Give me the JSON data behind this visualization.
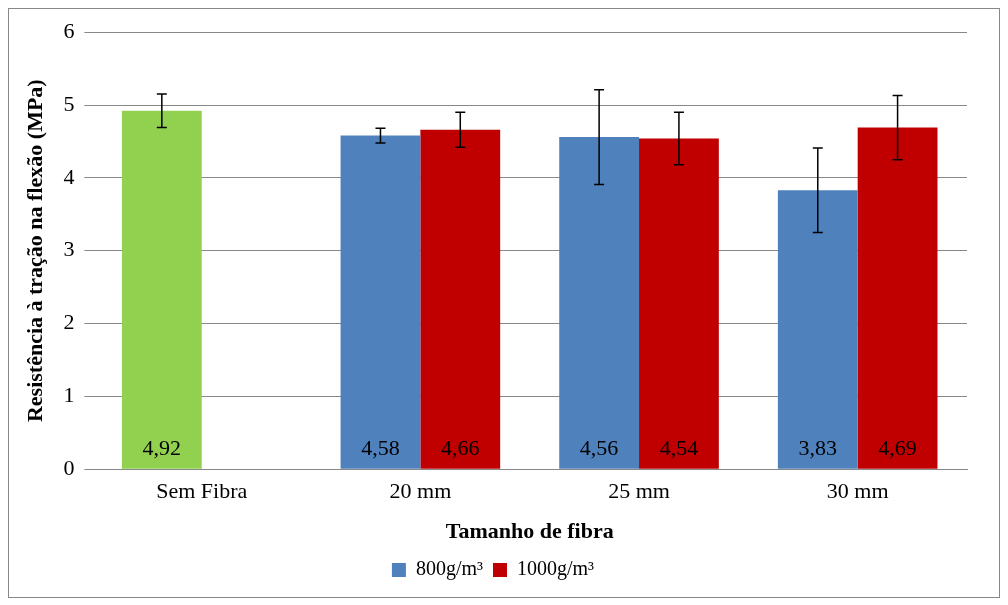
{
  "chart_data": {
    "type": "bar",
    "xlabel": "Tamanho de fibra",
    "ylabel": "Resistência à tração na flexão (MPa)",
    "categories": [
      "Sem Fibra",
      "20 mm",
      "25 mm",
      "30 mm"
    ],
    "series": [
      {
        "name": "800g/m³",
        "color": "#4f81bd",
        "colors": [
          "#92d050",
          "#4f81bd",
          "#4f81bd",
          "#4f81bd"
        ],
        "values": [
          4.92,
          4.58,
          4.56,
          3.83
        ],
        "value_labels": [
          "4,92",
          "4,58",
          "4,56",
          "3,83"
        ],
        "errors": [
          0.23,
          0.1,
          0.65,
          0.58
        ]
      },
      {
        "name": "1000g/m³",
        "color": "#c00000",
        "values": [
          null,
          4.66,
          4.54,
          4.69
        ],
        "value_labels": [
          null,
          "4,66",
          "4,54",
          "4,69"
        ],
        "errors": [
          null,
          0.24,
          0.36,
          0.44
        ]
      }
    ],
    "ylim": [
      0,
      6
    ],
    "yticks": [
      0,
      1,
      2,
      3,
      4,
      5,
      6
    ],
    "grid": "y",
    "legend": "bottom"
  }
}
